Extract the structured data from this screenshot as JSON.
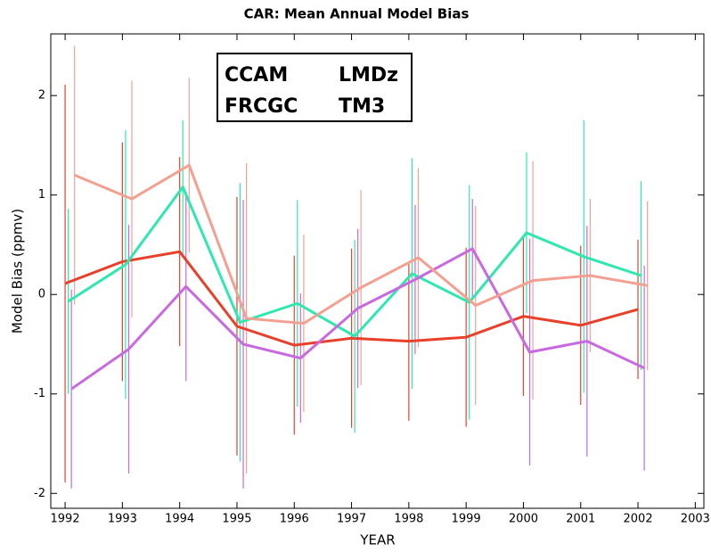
{
  "chart_data": {
    "type": "line",
    "title": "CAR: Mean Annual Model Bias",
    "x_label": "YEAR",
    "y_label": "Model Bias (ppmv)",
    "x": [
      1992,
      1993,
      1994,
      1995,
      1996,
      1997,
      1998,
      1999,
      2000,
      2001,
      2002
    ],
    "xlim": [
      1991.75,
      2003.15
    ],
    "xticks": [
      1992,
      1993,
      1994,
      1995,
      1996,
      1997,
      1998,
      1999,
      2000,
      2001,
      2002,
      2003
    ],
    "ylim": [
      -2.15,
      2.62
    ],
    "yticks": [
      -2,
      -1,
      0,
      1,
      2
    ],
    "series": [
      {
        "name": "CCAM",
        "color": "#e8402a",
        "values": [
          0.11,
          0.33,
          0.43,
          -0.32,
          -0.51,
          -0.44,
          -0.47,
          -0.43,
          -0.22,
          -0.31,
          -0.15
        ],
        "errors": [
          2.0,
          1.2,
          0.95,
          1.3,
          0.9,
          0.9,
          0.8,
          0.9,
          0.8,
          0.8,
          0.7
        ]
      },
      {
        "name": "LMDz",
        "color": "#2ee8b0",
        "values": [
          -0.07,
          0.3,
          1.08,
          -0.28,
          -0.09,
          -0.42,
          0.21,
          -0.08,
          0.62,
          0.38,
          0.19
        ],
        "errors": [
          0.93,
          1.35,
          0.67,
          1.4,
          1.04,
          0.97,
          1.16,
          1.18,
          0.81,
          1.37,
          0.95
        ]
      },
      {
        "name": "FRCGC",
        "color": "#c869e0",
        "values": [
          -0.95,
          -0.55,
          0.08,
          -0.5,
          -0.64,
          -0.14,
          0.15,
          0.46,
          -0.58,
          -0.47,
          -0.74
        ],
        "errors": [
          1.0,
          1.25,
          0.95,
          1.45,
          0.65,
          0.8,
          0.75,
          0.5,
          1.14,
          1.16,
          1.03
        ]
      },
      {
        "name": "TM3",
        "color": "#f4a090",
        "values": [
          1.2,
          0.96,
          1.3,
          -0.24,
          -0.29,
          0.07,
          0.37,
          -0.11,
          0.14,
          0.19,
          0.09
        ],
        "errors": [
          1.3,
          1.19,
          0.88,
          1.56,
          0.89,
          0.98,
          0.9,
          1.0,
          1.2,
          0.77,
          0.85
        ]
      }
    ]
  }
}
